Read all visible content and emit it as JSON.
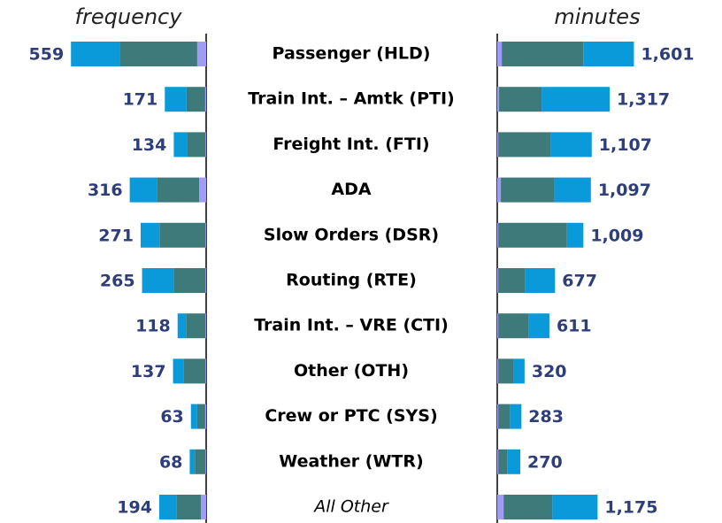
{
  "chart_data": {
    "type": "butterfly-stacked-bar",
    "categories": [
      "Passenger (HLD)",
      "Train Int. – Amtk (PTI)",
      "Freight Int. (FTI)",
      "ADA",
      "Slow Orders (DSR)",
      "Routing (RTE)",
      "Train Int. – VRE (CTI)",
      "Other (OTH)",
      "Crew or PTC (SYS)",
      "Weather (WTR)",
      "All Other"
    ],
    "panels": [
      {
        "title": "frequency",
        "side": "left",
        "xlim": [
          0,
          600
        ],
        "series": [
          {
            "color": "#a29bf5",
            "values": [
              37,
              4,
              3,
              29,
              3,
              3,
              3,
              3,
              4,
              3,
              22
            ]
          },
          {
            "color": "#3f7a7a",
            "values": [
              318,
              77,
              77,
              175,
              190,
              131,
              80,
              91,
              33,
              44,
              99
            ]
          },
          {
            "color": "#0b9ad9",
            "values": [
              204,
              90,
              54,
              112,
              78,
              131,
              35,
              43,
              26,
              21,
              73
            ]
          }
        ],
        "totals": [
          559,
          171,
          134,
          316,
          271,
          265,
          118,
          137,
          63,
          68,
          194
        ]
      },
      {
        "title": "minutes",
        "side": "right",
        "xlim": [
          0,
          1700
        ],
        "series": [
          {
            "color": "#a29bf5",
            "values": [
              53,
              21,
              11,
              42,
              11,
              11,
              11,
              11,
              11,
              11,
              74
            ]
          },
          {
            "color": "#3f7a7a",
            "values": [
              954,
              498,
              615,
              626,
              806,
              318,
              360,
              180,
              138,
              106,
              572
            ]
          },
          {
            "color": "#0b9ad9",
            "values": [
              594,
              798,
              481,
              429,
              192,
              348,
              240,
              129,
              134,
              153,
              529
            ]
          }
        ],
        "totals": [
          1601,
          1317,
          1107,
          1097,
          1009,
          677,
          611,
          320,
          283,
          270,
          1175
        ],
        "value_labels": [
          "1,601",
          "1,317",
          "1,107",
          "1,097",
          "1,009",
          "677",
          "611",
          "320",
          "283",
          "270",
          "1,175"
        ]
      }
    ]
  }
}
